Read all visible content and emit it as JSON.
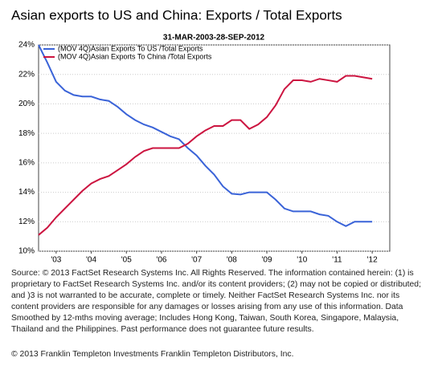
{
  "chart_data": {
    "type": "line",
    "title": "Asian exports to US and China: Exports / Total Exports",
    "subtitle": "31-MAR-2003-28-SEP-2012",
    "x": [
      2003.0,
      2003.25,
      2003.5,
      2003.75,
      2004.0,
      2004.25,
      2004.5,
      2004.75,
      2005.0,
      2005.25,
      2005.5,
      2005.75,
      2006.0,
      2006.25,
      2006.5,
      2006.75,
      2007.0,
      2007.25,
      2007.5,
      2007.75,
      2008.0,
      2008.25,
      2008.5,
      2008.75,
      2009.0,
      2009.25,
      2009.5,
      2009.75,
      2010.0,
      2010.25,
      2010.5,
      2010.75,
      2011.0,
      2011.25,
      2011.5,
      2011.75,
      2012.0,
      2012.25,
      2012.5
    ],
    "series": [
      {
        "name": "(MOV 4Q)Asian Exports To US /Total Exports",
        "color": "#3a63d8",
        "values": [
          24.0,
          22.8,
          21.5,
          20.9,
          20.6,
          20.5,
          20.5,
          20.3,
          20.2,
          19.8,
          19.3,
          18.9,
          18.6,
          18.4,
          18.1,
          17.8,
          17.6,
          17.0,
          16.5,
          15.8,
          15.2,
          14.4,
          13.9,
          13.85,
          14.0,
          14.0,
          14.0,
          13.5,
          12.9,
          12.7,
          12.7,
          12.7,
          12.5,
          12.4,
          12.0,
          11.7,
          12.0,
          12.0,
          12.0
        ]
      },
      {
        "name": "(MOV 4Q)Asian Exports To China /Total Exports",
        "color": "#cc1440",
        "values": [
          11.1,
          11.6,
          12.3,
          12.9,
          13.5,
          14.1,
          14.6,
          14.9,
          15.1,
          15.5,
          15.9,
          16.4,
          16.8,
          17.0,
          17.0,
          17.0,
          17.0,
          17.3,
          17.8,
          18.2,
          18.5,
          18.5,
          18.9,
          18.9,
          18.3,
          18.6,
          19.1,
          19.9,
          21.0,
          21.6,
          21.6,
          21.5,
          21.7,
          21.6,
          21.5,
          21.9,
          21.9,
          21.8,
          21.7
        ]
      }
    ],
    "xlim": [
      2003.0,
      2013.0
    ],
    "xticks": [
      {
        "value": 2003.5,
        "label": "'03"
      },
      {
        "value": 2004.5,
        "label": "'04"
      },
      {
        "value": 2005.5,
        "label": "'05"
      },
      {
        "value": 2006.5,
        "label": "'06"
      },
      {
        "value": 2007.5,
        "label": "'07"
      },
      {
        "value": 2008.5,
        "label": "'08"
      },
      {
        "value": 2009.5,
        "label": "'09"
      },
      {
        "value": 2010.5,
        "label": "'10"
      },
      {
        "value": 2011.5,
        "label": "'11"
      },
      {
        "value": 2012.5,
        "label": "'12"
      }
    ],
    "ylim": [
      10,
      24
    ],
    "yticks": [
      {
        "value": 10,
        "label": "10%"
      },
      {
        "value": 12,
        "label": "12%"
      },
      {
        "value": 14,
        "label": "14%"
      },
      {
        "value": 16,
        "label": "16%"
      },
      {
        "value": 18,
        "label": "18%"
      },
      {
        "value": 20,
        "label": "20%"
      },
      {
        "value": 22,
        "label": "22%"
      },
      {
        "value": 24,
        "label": "24%"
      }
    ],
    "grid": true,
    "legend": "upper left",
    "note": "Source: © 2013 FactSet Research Systems Inc. All Rights Reserved. The information contained herein: (1) is proprietary to FactSet Research Systems Inc. and/or its content providers; (2) may not be copied or distributed; and )3 is not warranted to be accurate, complete or timely. Neither FactSet Research Systems Inc. nor its content providers are responsible for any damages or losses arising from any use of this information. Data Smoothed by 12-mths moving average; Includes Hong Kong, Taiwan, South Korea, Singapore, Malaysia, Thailand and the Philippines. Past performance does not guarantee future results.",
    "copyright": "© 2013 Franklin Templeton Investments Franklin Templeton Distributors, Inc."
  }
}
